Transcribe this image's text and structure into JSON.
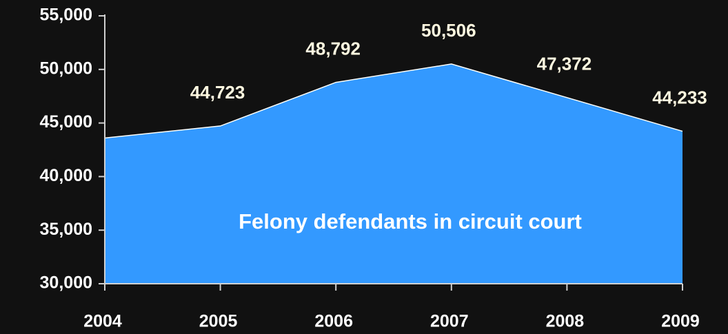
{
  "chart_data": {
    "type": "area",
    "categories": [
      "2004",
      "2005",
      "2006",
      "2007",
      "2008",
      "2009"
    ],
    "series": [
      {
        "name": "Felony defendants in circuit court",
        "color": "#3399ff",
        "values": [
          43600,
          44723,
          48792,
          50506,
          47372,
          44233
        ],
        "value_labels": [
          null,
          "44,723",
          "48,792",
          "50,506",
          "47,372",
          "44,233"
        ]
      }
    ],
    "ylim": [
      30000,
      55000
    ],
    "yticks": [
      {
        "value": 30000,
        "label": "30,000"
      },
      {
        "value": 35000,
        "label": "35,000"
      },
      {
        "value": 40000,
        "label": "40,000"
      },
      {
        "value": 45000,
        "label": "45,000"
      },
      {
        "value": 50000,
        "label": "50,000"
      },
      {
        "value": 55000,
        "label": "55,000"
      }
    ],
    "grid": false
  }
}
